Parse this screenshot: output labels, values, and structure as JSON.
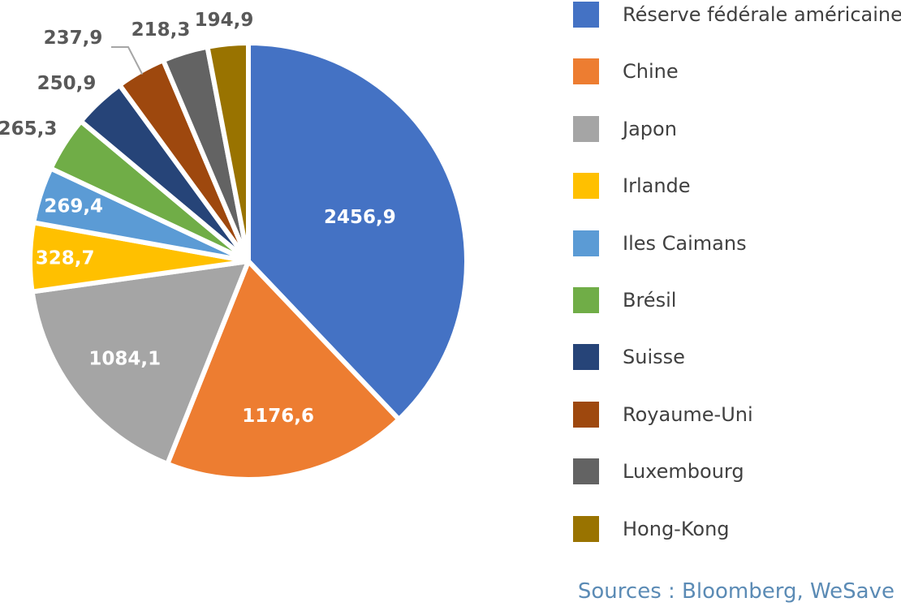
{
  "chart_data": {
    "type": "pie",
    "title": "",
    "start_angle_deg": 0,
    "direction": "clockwise",
    "slices": [
      {
        "label": "Réserve fédérale américaine",
        "value": 2456.9,
        "display": "2456,9",
        "color": "#4472c4",
        "label_color": "#ffffff"
      },
      {
        "label": "Chine",
        "value": 1176.6,
        "display": "1176,6",
        "color": "#ed7d31",
        "label_color": "#ffffff"
      },
      {
        "label": "Japon",
        "value": 1084.1,
        "display": "1084,1",
        "color": "#a5a5a5",
        "label_color": "#ffffff"
      },
      {
        "label": "Irlande",
        "value": 328.7,
        "display": "328,7",
        "color": "#ffc000",
        "label_color": "#ffffff"
      },
      {
        "label": "Iles Caimans",
        "value": 269.4,
        "display": "269,4",
        "color": "#5b9bd5",
        "label_color": "#ffffff"
      },
      {
        "label": "Brésil",
        "value": 265.3,
        "display": "265,3",
        "color": "#70ad47",
        "label_color": "#595959"
      },
      {
        "label": "Suisse",
        "value": 250.9,
        "display": "250,9",
        "color": "#264478",
        "label_color": "#595959"
      },
      {
        "label": "Royaume-Uni",
        "value": 237.9,
        "display": "237,9",
        "color": "#9e480e",
        "label_color": "#595959"
      },
      {
        "label": "Luxembourg",
        "value": 218.3,
        "display": "218,3",
        "color": "#636363",
        "label_color": "#595959"
      },
      {
        "label": "Hong-Kong",
        "value": 194.9,
        "display": "194,9",
        "color": "#997300",
        "label_color": "#595959"
      }
    ],
    "legend_position": "right"
  },
  "source": "Sources : Bloomberg, WeSave"
}
